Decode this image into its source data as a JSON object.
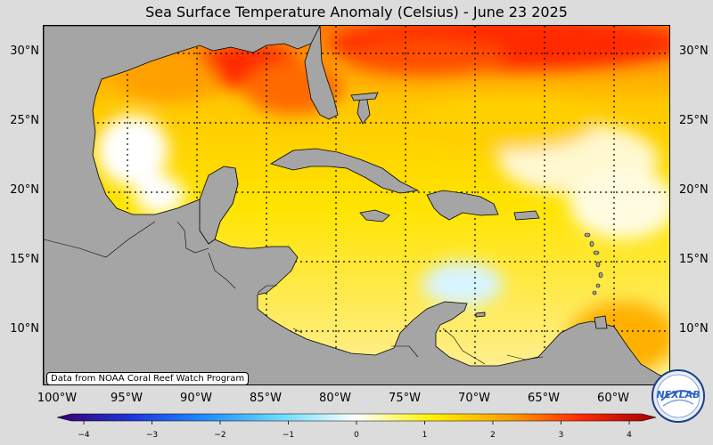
{
  "title": "Sea Surface Temperature Anomaly (Celsius) - June 23 2025",
  "latitude_labels": [
    "30°N",
    "25°N",
    "20°N",
    "15°N",
    "10°N"
  ],
  "longitude_labels": [
    "100°W",
    "95°W",
    "90°W",
    "85°W",
    "80°W",
    "75°W",
    "70°W",
    "65°W",
    "60°W"
  ],
  "credit": "Data from NOAA Coral Reef Watch Program",
  "colorbar": {
    "min": -4,
    "max": 4,
    "ticks": [
      "−4",
      "−3",
      "−2",
      "−1",
      "0",
      "1",
      "2",
      "3",
      "4"
    ],
    "colors": [
      "#3a0070",
      "#1f35d8",
      "#1f8fff",
      "#6ddcff",
      "#ffffff",
      "#fff200",
      "#ffa200",
      "#ff2a00",
      "#a30000"
    ]
  },
  "land_color": "#a5a5a5",
  "logo": {
    "text": "NEXLAB",
    "color": "#2d63c6"
  }
}
